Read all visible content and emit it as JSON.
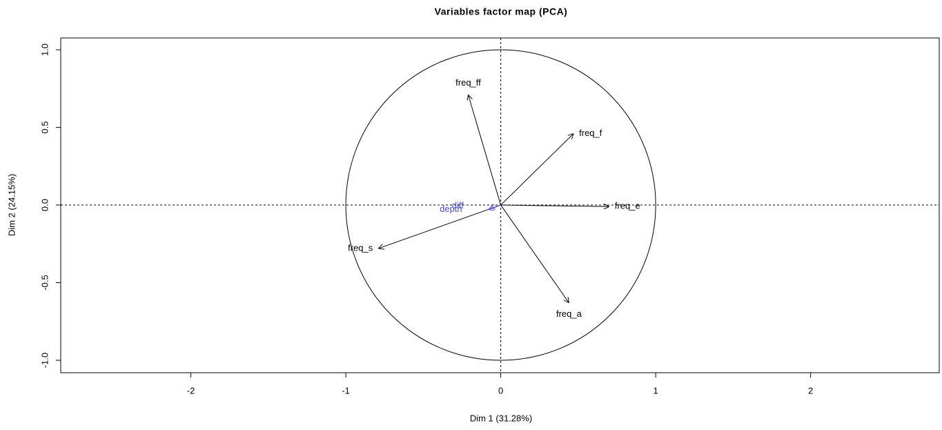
{
  "chart_data": {
    "type": "pca_variables",
    "title": "Variables factor map (PCA)",
    "xlabel": "Dim 1 (31.28%)",
    "ylabel": "Dim 2 (24.15%)",
    "xlim": [
      -2.84,
      2.83
    ],
    "ylim": [
      -1.08,
      1.076
    ],
    "xticks": [
      -2,
      -1,
      0,
      1,
      2
    ],
    "yticks": [
      {
        "value": -1,
        "label": "-1.0"
      },
      -0.5,
      {
        "value": 0,
        "label": "0.0"
      },
      0.5,
      {
        "value": 1,
        "label": "1.0"
      }
    ],
    "color": "#000000",
    "vectors": [
      {
        "label": "freq_ff",
        "x": -0.21,
        "y": 0.71
      },
      {
        "label": "freq_f",
        "x": 0.47,
        "y": 0.46
      },
      {
        "label": "freq_e",
        "x": 0.7,
        "y": -0.01
      },
      {
        "label": "freq_a",
        "x": 0.44,
        "y": -0.63
      },
      {
        "label": "freq_s",
        "x": -0.79,
        "y": -0.28
      }
    ],
    "supplementary_color": "#4b4bd0",
    "supplementary": [
      {
        "label": "depth",
        "x": -0.08,
        "y": -0.03
      },
      {
        "label": "diff",
        "x": -0.07,
        "y": -0.02
      }
    ]
  }
}
